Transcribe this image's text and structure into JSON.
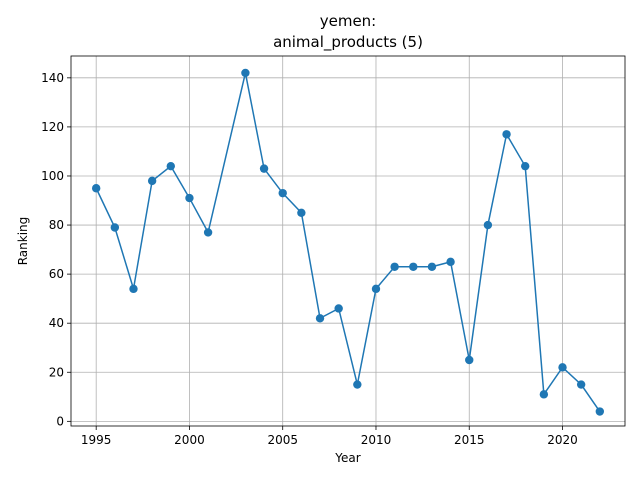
{
  "chart_data": {
    "type": "line",
    "title_line1": "yemen:",
    "title_line2": "animal_products (5)",
    "xlabel": "Year",
    "ylabel": "Ranking",
    "xlim": [
      1993.65,
      2023.35
    ],
    "ylim": [
      -1.9,
      148.9
    ],
    "xticks": [
      1995,
      2000,
      2005,
      2010,
      2015,
      2020
    ],
    "yticks": [
      0,
      20,
      40,
      60,
      80,
      100,
      120,
      140
    ],
    "grid": true,
    "color": "#1f77b4",
    "marker": "circle",
    "series": [
      {
        "x": [
          1995,
          1996,
          1997,
          1998,
          1999,
          2000,
          2001,
          2003,
          2004,
          2005,
          2006,
          2007,
          2008,
          2009,
          2010,
          2011,
          2012,
          2013,
          2014,
          2015,
          2016,
          2017,
          2018,
          2019,
          2020,
          2021,
          2022
        ],
        "y": [
          95,
          79,
          54,
          98,
          104,
          91,
          77,
          142,
          103,
          93,
          85,
          42,
          46,
          15,
          54,
          63,
          63,
          63,
          65,
          25,
          80,
          117,
          104,
          11,
          22,
          15,
          4
        ]
      }
    ]
  }
}
